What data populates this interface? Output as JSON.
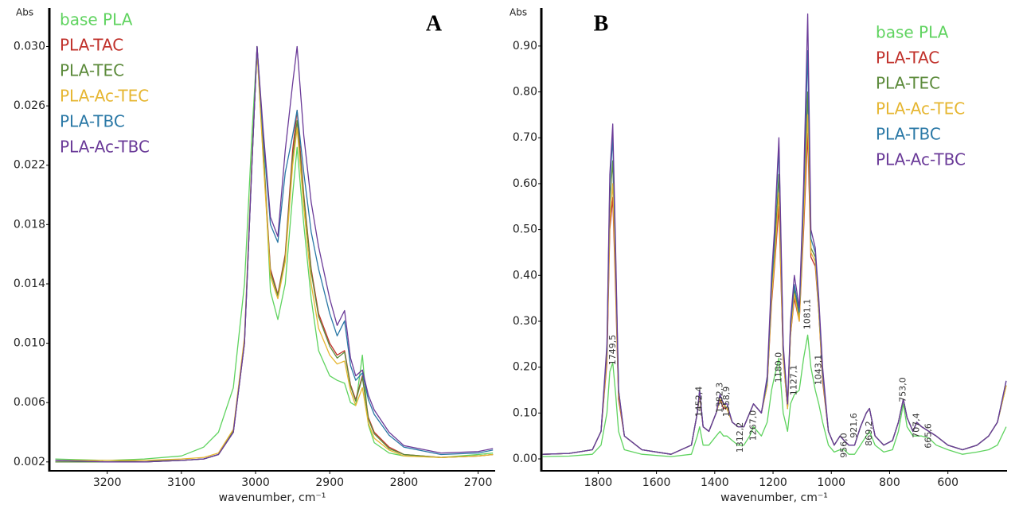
{
  "chart_data": [
    {
      "type": "line",
      "panel": "A",
      "y_label": "Abs",
      "x_label": "wavenumber, cm⁻¹",
      "legend": "upper left",
      "xlim": [
        3278,
        2677
      ],
      "ylim": [
        0.0014,
        0.0326
      ],
      "xticks": [
        3200,
        3100,
        3000,
        2900,
        2800,
        2700
      ],
      "yticks": [
        {
          "value": 0.03,
          "label": "0.030"
        },
        0.026,
        0.022,
        0.018,
        0.014,
        {
          "value": 0.01,
          "label": "0.010"
        },
        0.006,
        0.002
      ],
      "x": [
        3270,
        3200,
        3150,
        3100,
        3070,
        3050,
        3030,
        3015,
        3005,
        2998,
        2990,
        2980,
        2970,
        2960,
        2950,
        2944,
        2935,
        2925,
        2915,
        2900,
        2890,
        2880,
        2872,
        2865,
        2856,
        2848,
        2840,
        2820,
        2800,
        2750,
        2700,
        2680
      ],
      "series": [
        {
          "name": "base PLA",
          "color": "#5fd35f",
          "values": [
            0.0022,
            0.0021,
            0.0022,
            0.0024,
            0.003,
            0.004,
            0.007,
            0.014,
            0.024,
            0.03,
            0.024,
            0.0135,
            0.0116,
            0.014,
            0.02,
            0.0232,
            0.018,
            0.013,
            0.0095,
            0.0078,
            0.0075,
            0.0073,
            0.006,
            0.0058,
            0.0092,
            0.0045,
            0.0033,
            0.0026,
            0.0024,
            0.0023,
            0.0025,
            0.0026
          ]
        },
        {
          "name": "PLA-TAC",
          "color": "#c0302a",
          "values": [
            0.0021,
            0.002,
            0.002,
            0.0021,
            0.0022,
            0.0025,
            0.004,
            0.01,
            0.022,
            0.03,
            0.023,
            0.015,
            0.0133,
            0.016,
            0.023,
            0.0257,
            0.02,
            0.015,
            0.012,
            0.01,
            0.0092,
            0.0095,
            0.0072,
            0.0062,
            0.0078,
            0.005,
            0.004,
            0.003,
            0.0025,
            0.0023,
            0.0024,
            0.0025
          ]
        },
        {
          "name": "PLA-TEC",
          "color": "#5b8a3a",
          "values": [
            0.002,
            0.002,
            0.0021,
            0.0021,
            0.0022,
            0.0025,
            0.0041,
            0.0102,
            0.0222,
            0.0298,
            0.0228,
            0.0148,
            0.0132,
            0.0158,
            0.0225,
            0.025,
            0.0198,
            0.0148,
            0.0118,
            0.0098,
            0.009,
            0.0094,
            0.0071,
            0.0061,
            0.0077,
            0.0049,
            0.0039,
            0.0029,
            0.0025,
            0.0023,
            0.0024,
            0.0025
          ]
        },
        {
          "name": "PLA-Ac-TEC",
          "color": "#e6b631",
          "values": [
            0.0021,
            0.0021,
            0.0021,
            0.0022,
            0.0023,
            0.0026,
            0.0042,
            0.0104,
            0.0224,
            0.0297,
            0.0226,
            0.0145,
            0.013,
            0.0155,
            0.022,
            0.0245,
            0.0192,
            0.014,
            0.011,
            0.0092,
            0.0086,
            0.0088,
            0.0068,
            0.0058,
            0.007,
            0.0046,
            0.0036,
            0.0028,
            0.0024,
            0.0023,
            0.0024,
            0.0025
          ]
        },
        {
          "name": "PLA-TBC",
          "color": "#2a78a6",
          "values": [
            0.0021,
            0.002,
            0.002,
            0.0021,
            0.0022,
            0.0025,
            0.004,
            0.01,
            0.022,
            0.03,
            0.024,
            0.018,
            0.0168,
            0.0215,
            0.024,
            0.0257,
            0.0215,
            0.0175,
            0.015,
            0.012,
            0.0105,
            0.0115,
            0.0085,
            0.0075,
            0.008,
            0.0062,
            0.0052,
            0.0038,
            0.003,
            0.0025,
            0.0026,
            0.0028
          ]
        },
        {
          "name": "PLA-Ac-TBC",
          "color": "#6a3a98",
          "values": [
            0.0021,
            0.002,
            0.002,
            0.0021,
            0.0022,
            0.0025,
            0.004,
            0.01,
            0.022,
            0.03,
            0.0245,
            0.0185,
            0.0172,
            0.023,
            0.0275,
            0.03,
            0.024,
            0.0195,
            0.0165,
            0.013,
            0.0112,
            0.0122,
            0.009,
            0.0078,
            0.0082,
            0.0065,
            0.0055,
            0.004,
            0.0031,
            0.0026,
            0.0027,
            0.0029
          ]
        }
      ]
    },
    {
      "type": "line",
      "panel": "B",
      "y_label": "Abs",
      "x_label": "wavenumber, cm⁻¹",
      "legend": "upper right",
      "xlim": [
        1995,
        397
      ],
      "ylim": [
        -0.026,
        0.983
      ],
      "xticks": [
        1800,
        1600,
        1400,
        1200,
        1000,
        800,
        600
      ],
      "yticks": [
        {
          "value": 0,
          "label": "0.00"
        },
        {
          "value": 0.1,
          "label": "0.10"
        },
        {
          "value": 0.2,
          "label": "0.20"
        },
        {
          "value": 0.3,
          "label": "0.30"
        },
        {
          "value": 0.4,
          "label": "0.40"
        },
        {
          "value": 0.5,
          "label": "0.50"
        },
        {
          "value": 0.6,
          "label": "0.60"
        },
        {
          "value": 0.7,
          "label": "0.70"
        },
        {
          "value": 0.8,
          "label": "0.80"
        },
        {
          "value": 0.9,
          "label": "0.90"
        }
      ],
      "peak_labels": [
        {
          "value": 1749.5,
          "label": "1749,5"
        },
        {
          "value": 1452.4,
          "label": "1452,4"
        },
        {
          "value": 1382.3,
          "label": "1382,3"
        },
        {
          "value": 1358.9,
          "label": "1358,9"
        },
        {
          "value": 1312.2,
          "label": "1312,2"
        },
        {
          "value": 1267,
          "label": "1267,0"
        },
        {
          "value": 1180,
          "label": "1180,0"
        },
        {
          "value": 1127.1,
          "label": "1127,1"
        },
        {
          "value": 1081.1,
          "label": "1081,1"
        },
        {
          "value": 1043.1,
          "label": "1043,1"
        },
        {
          "value": 956,
          "label": "956,0"
        },
        {
          "value": 921.6,
          "label": "921,6"
        },
        {
          "value": 869.2,
          "label": "869,2"
        },
        {
          "value": 753,
          "label": "753,0"
        },
        {
          "value": 707.4,
          "label": "707,4"
        },
        {
          "value": 665.6,
          "label": "665,6"
        }
      ],
      "x": [
        1990,
        1900,
        1820,
        1790,
        1770,
        1760,
        1750,
        1740,
        1730,
        1710,
        1650,
        1550,
        1480,
        1460,
        1452,
        1440,
        1420,
        1395,
        1382,
        1370,
        1358,
        1340,
        1320,
        1300,
        1280,
        1267,
        1240,
        1220,
        1205,
        1195,
        1180,
        1165,
        1150,
        1140,
        1127,
        1110,
        1095,
        1081,
        1070,
        1055,
        1043,
        1030,
        1010,
        990,
        970,
        956,
        940,
        920,
        900,
        880,
        869,
        850,
        820,
        790,
        770,
        753,
        740,
        720,
        707,
        690,
        665,
        640,
        600,
        550,
        500,
        460,
        430,
        400
      ],
      "series": [
        {
          "name": "base PLA",
          "color": "#5fd35f",
          "values": [
            0.005,
            0.006,
            0.01,
            0.03,
            0.1,
            0.19,
            0.21,
            0.14,
            0.06,
            0.02,
            0.01,
            0.005,
            0.01,
            0.05,
            0.07,
            0.03,
            0.03,
            0.05,
            0.06,
            0.05,
            0.05,
            0.04,
            0.03,
            0.03,
            0.05,
            0.07,
            0.05,
            0.08,
            0.15,
            0.18,
            0.22,
            0.1,
            0.06,
            0.12,
            0.14,
            0.15,
            0.22,
            0.27,
            0.2,
            0.15,
            0.12,
            0.08,
            0.03,
            0.015,
            0.02,
            0.02,
            0.01,
            0.01,
            0.03,
            0.05,
            0.06,
            0.03,
            0.015,
            0.02,
            0.06,
            0.12,
            0.07,
            0.05,
            0.05,
            0.05,
            0.045,
            0.03,
            0.02,
            0.01,
            0.015,
            0.02,
            0.03,
            0.07
          ]
        },
        {
          "name": "PLA-TAC",
          "color": "#c0302a",
          "values": [
            0.01,
            0.012,
            0.02,
            0.06,
            0.21,
            0.5,
            0.57,
            0.36,
            0.13,
            0.05,
            0.02,
            0.01,
            0.03,
            0.1,
            0.14,
            0.07,
            0.06,
            0.1,
            0.13,
            0.11,
            0.11,
            0.08,
            0.07,
            0.07,
            0.1,
            0.12,
            0.1,
            0.16,
            0.34,
            0.42,
            0.55,
            0.22,
            0.11,
            0.27,
            0.35,
            0.3,
            0.5,
            0.71,
            0.44,
            0.42,
            0.32,
            0.17,
            0.06,
            0.03,
            0.05,
            0.04,
            0.03,
            0.03,
            0.07,
            0.1,
            0.11,
            0.05,
            0.03,
            0.04,
            0.08,
            0.13,
            0.09,
            0.06,
            0.08,
            0.07,
            0.06,
            0.05,
            0.03,
            0.02,
            0.03,
            0.05,
            0.08,
            0.16
          ]
        },
        {
          "name": "PLA-TEC",
          "color": "#5b8a3a",
          "values": [
            0.01,
            0.012,
            0.02,
            0.06,
            0.23,
            0.56,
            0.65,
            0.4,
            0.14,
            0.05,
            0.02,
            0.01,
            0.03,
            0.1,
            0.14,
            0.07,
            0.06,
            0.1,
            0.13,
            0.12,
            0.11,
            0.08,
            0.07,
            0.07,
            0.1,
            0.12,
            0.1,
            0.17,
            0.36,
            0.45,
            0.62,
            0.23,
            0.11,
            0.28,
            0.37,
            0.31,
            0.54,
            0.8,
            0.46,
            0.44,
            0.33,
            0.18,
            0.06,
            0.03,
            0.05,
            0.04,
            0.03,
            0.03,
            0.07,
            0.1,
            0.11,
            0.05,
            0.03,
            0.04,
            0.08,
            0.13,
            0.09,
            0.06,
            0.08,
            0.07,
            0.06,
            0.05,
            0.03,
            0.02,
            0.03,
            0.05,
            0.08,
            0.16
          ]
        },
        {
          "name": "PLA-Ac-TEC",
          "color": "#e6b631",
          "values": [
            0.01,
            0.012,
            0.02,
            0.06,
            0.22,
            0.52,
            0.6,
            0.38,
            0.14,
            0.05,
            0.02,
            0.01,
            0.03,
            0.1,
            0.14,
            0.07,
            0.06,
            0.1,
            0.13,
            0.12,
            0.11,
            0.08,
            0.07,
            0.07,
            0.1,
            0.12,
            0.1,
            0.16,
            0.35,
            0.43,
            0.58,
            0.22,
            0.11,
            0.27,
            0.36,
            0.3,
            0.52,
            0.75,
            0.45,
            0.43,
            0.32,
            0.18,
            0.06,
            0.03,
            0.05,
            0.04,
            0.03,
            0.03,
            0.07,
            0.1,
            0.11,
            0.05,
            0.03,
            0.04,
            0.08,
            0.13,
            0.09,
            0.06,
            0.08,
            0.07,
            0.06,
            0.05,
            0.03,
            0.02,
            0.03,
            0.05,
            0.08,
            0.16
          ]
        },
        {
          "name": "PLA-TBC",
          "color": "#2a78a6",
          "values": [
            0.01,
            0.012,
            0.02,
            0.06,
            0.24,
            0.6,
            0.7,
            0.43,
            0.15,
            0.05,
            0.02,
            0.01,
            0.03,
            0.1,
            0.15,
            0.07,
            0.06,
            0.1,
            0.14,
            0.12,
            0.12,
            0.08,
            0.07,
            0.07,
            0.1,
            0.12,
            0.1,
            0.17,
            0.38,
            0.48,
            0.68,
            0.24,
            0.12,
            0.29,
            0.38,
            0.32,
            0.57,
            0.89,
            0.48,
            0.45,
            0.34,
            0.19,
            0.06,
            0.03,
            0.05,
            0.04,
            0.03,
            0.03,
            0.07,
            0.1,
            0.11,
            0.05,
            0.03,
            0.04,
            0.08,
            0.13,
            0.09,
            0.06,
            0.08,
            0.07,
            0.06,
            0.05,
            0.03,
            0.02,
            0.03,
            0.05,
            0.08,
            0.17
          ]
        },
        {
          "name": "PLA-Ac-TBC",
          "color": "#6a3a98",
          "values": [
            0.01,
            0.012,
            0.02,
            0.06,
            0.25,
            0.62,
            0.73,
            0.45,
            0.15,
            0.05,
            0.02,
            0.01,
            0.03,
            0.1,
            0.15,
            0.07,
            0.06,
            0.1,
            0.14,
            0.12,
            0.12,
            0.08,
            0.07,
            0.07,
            0.1,
            0.12,
            0.1,
            0.18,
            0.4,
            0.5,
            0.7,
            0.25,
            0.12,
            0.3,
            0.4,
            0.33,
            0.6,
            0.97,
            0.5,
            0.46,
            0.35,
            0.2,
            0.06,
            0.03,
            0.05,
            0.04,
            0.03,
            0.03,
            0.07,
            0.1,
            0.11,
            0.05,
            0.03,
            0.04,
            0.08,
            0.13,
            0.09,
            0.06,
            0.08,
            0.07,
            0.06,
            0.05,
            0.03,
            0.02,
            0.03,
            0.05,
            0.08,
            0.17
          ]
        }
      ]
    }
  ]
}
